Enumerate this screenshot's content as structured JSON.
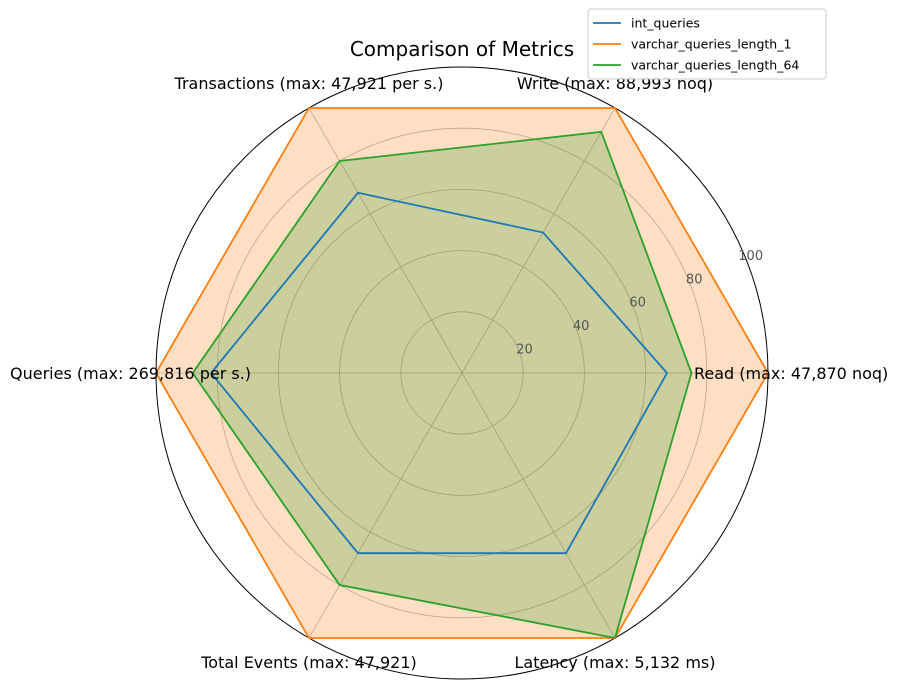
{
  "chart_data": {
    "type": "radar",
    "title": "Comparison of Metrics",
    "categories": [
      "Read (max: 47,870 noq)",
      "Write (max: 88,993 noq)",
      "Transactions (max: 47,921 per s.)",
      "Queries (max: 269,816 per s.)",
      "Total Events (max: 47,921)",
      "Latency (max: 5,132 ms)"
    ],
    "r_ticks": [
      20,
      40,
      60,
      80,
      100
    ],
    "r_range": [
      0,
      100
    ],
    "grid": true,
    "legend_position": "top-right",
    "series": [
      {
        "name": "int_queries",
        "color": "#1f77b4",
        "fill": "none",
        "values": [
          67,
          53,
          68,
          82,
          68,
          68
        ]
      },
      {
        "name": "varchar_queries_length_1",
        "color": "#ff7f0e",
        "fill": "#ff7f0e",
        "values": [
          100,
          100,
          100,
          100,
          100,
          100
        ]
      },
      {
        "name": "varchar_queries_length_64",
        "color": "#2ca02c",
        "fill": "#2ca02c",
        "values": [
          75,
          91,
          80,
          88,
          80,
          100
        ]
      }
    ]
  }
}
